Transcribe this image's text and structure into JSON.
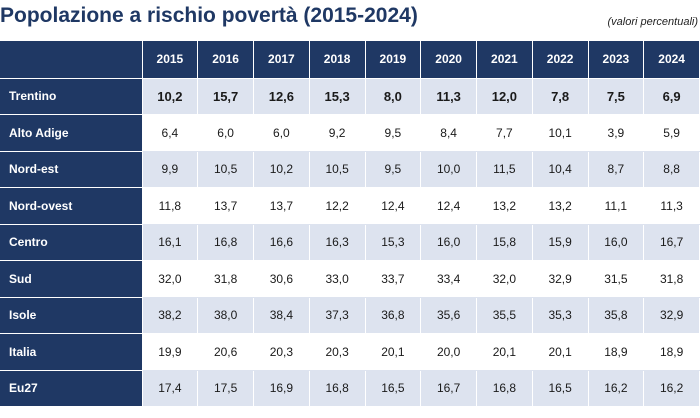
{
  "title": "Popolazione a rischio povertà (2015-2024)",
  "note": "(valori percentuali)",
  "table": {
    "corner": "",
    "years": [
      "2015",
      "2016",
      "2017",
      "2018",
      "2019",
      "2020",
      "2021",
      "2022",
      "2023",
      "2024"
    ],
    "rows": [
      {
        "label": "Trentino",
        "values": [
          "10,2",
          "15,7",
          "12,6",
          "15,3",
          "8,0",
          "11,3",
          "12,0",
          "7,8",
          "7,5",
          "6,9"
        ]
      },
      {
        "label": "Alto Adige",
        "values": [
          "6,4",
          "6,0",
          "6,0",
          "9,2",
          "9,5",
          "8,4",
          "7,7",
          "10,1",
          "3,9",
          "5,9"
        ]
      },
      {
        "label": "Nord-est",
        "values": [
          "9,9",
          "10,5",
          "10,2",
          "10,5",
          "9,5",
          "10,0",
          "11,5",
          "10,4",
          "8,7",
          "8,8"
        ]
      },
      {
        "label": "Nord-ovest",
        "values": [
          "11,8",
          "13,7",
          "13,7",
          "12,2",
          "12,4",
          "12,4",
          "13,2",
          "13,2",
          "11,1",
          "11,3"
        ]
      },
      {
        "label": "Centro",
        "values": [
          "16,1",
          "16,8",
          "16,6",
          "16,3",
          "15,3",
          "16,0",
          "15,8",
          "15,9",
          "16,0",
          "16,7"
        ]
      },
      {
        "label": "Sud",
        "values": [
          "32,0",
          "31,8",
          "30,6",
          "33,0",
          "33,7",
          "33,4",
          "32,0",
          "32,9",
          "31,5",
          "31,8"
        ]
      },
      {
        "label": "Isole",
        "values": [
          "38,2",
          "38,0",
          "38,4",
          "37,3",
          "36,8",
          "35,6",
          "35,5",
          "35,3",
          "35,8",
          "32,9"
        ]
      },
      {
        "label": "Italia",
        "values": [
          "19,9",
          "20,6",
          "20,3",
          "20,3",
          "20,1",
          "20,0",
          "20,1",
          "20,1",
          "18,9",
          "18,9"
        ]
      },
      {
        "label": "Eu27",
        "values": [
          "17,4",
          "17,5",
          "16,9",
          "16,8",
          "16,5",
          "16,7",
          "16,8",
          "16,5",
          "16,2",
          "16,2"
        ]
      }
    ]
  },
  "colors": {
    "header_bg": "#1f3864",
    "band": "#dde3ef",
    "title": "#1f3864"
  }
}
